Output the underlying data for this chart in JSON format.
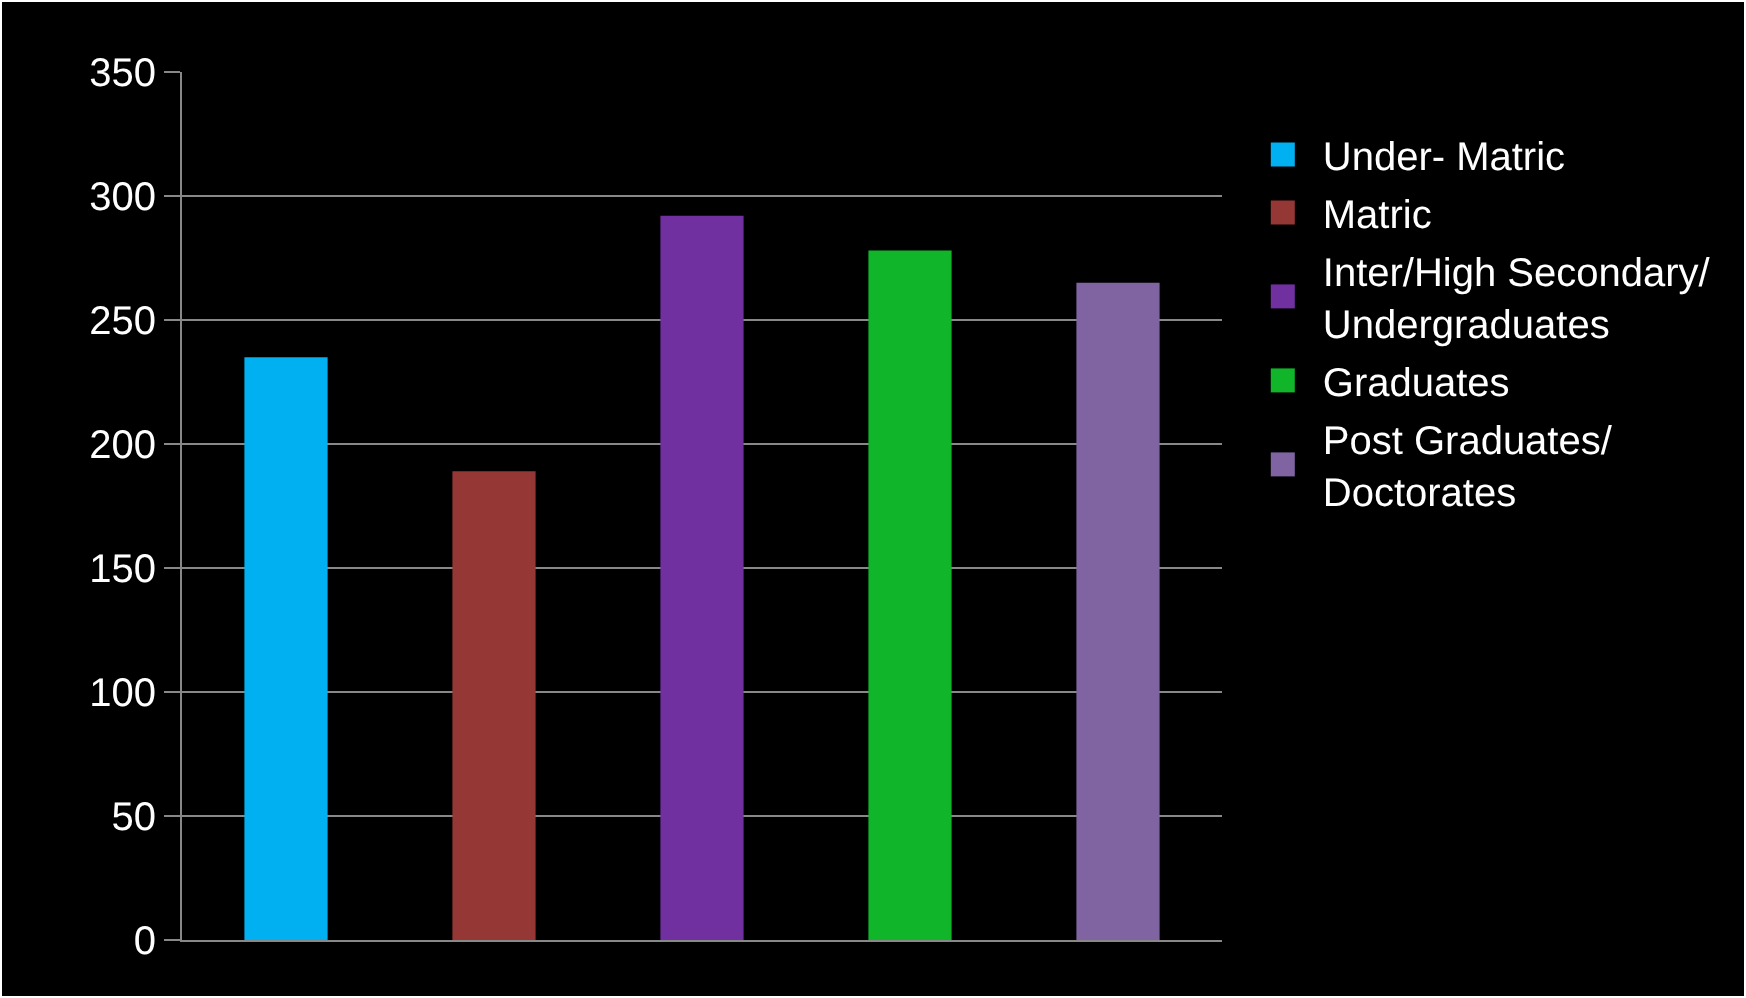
{
  "chart_data": {
    "type": "bar",
    "categories": [
      null,
      null,
      null,
      null,
      null
    ],
    "series": [
      {
        "name": "Under- Matric",
        "color": "#00b0f0",
        "values": [
          235,
          null,
          null,
          null,
          null
        ]
      },
      {
        "name": "Matric",
        "color": "#953735",
        "values": [
          null,
          189,
          null,
          null,
          null
        ]
      },
      {
        "name": "Inter/High Secondary/ Undergraduates",
        "color": "#7030a0",
        "values": [
          null,
          null,
          292,
          null,
          null
        ]
      },
      {
        "name": "Graduates",
        "color": "#10b52a",
        "values": [
          null,
          null,
          null,
          278,
          null
        ]
      },
      {
        "name": "Post Graduates/ Doctorates",
        "color": "#8064a2",
        "values": [
          null,
          null,
          null,
          null,
          265
        ]
      }
    ],
    "ylim": [
      0,
      350
    ],
    "yticks": [
      0,
      50,
      100,
      150,
      200,
      250,
      300,
      350
    ],
    "grid": "y",
    "legend": "right",
    "tick_labels": "y"
  }
}
